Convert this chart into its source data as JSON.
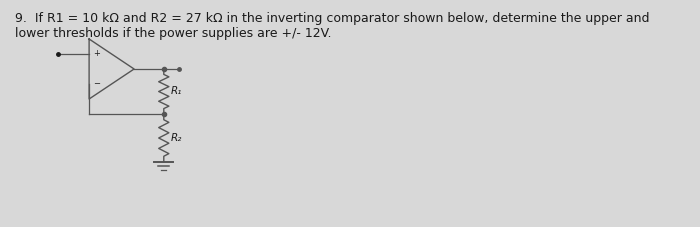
{
  "title_line1": "9.  If R1 = 10 kΩ and R2 = 27 kΩ in the inverting comparator shown below, determine the upper and",
  "title_line2": "lower thresholds if the power supplies are +/- 12V.",
  "bg_color": "#d8d8d8",
  "text_color": "#1a1a1a",
  "circuit_color": "#555555",
  "R1_label": "R₁",
  "R2_label": "R₂",
  "font_size_text": 9.0
}
